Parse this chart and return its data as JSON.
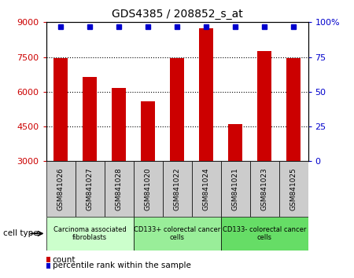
{
  "title": "GDS4385 / 208852_s_at",
  "samples": [
    "GSM841026",
    "GSM841027",
    "GSM841028",
    "GSM841020",
    "GSM841022",
    "GSM841024",
    "GSM841021",
    "GSM841023",
    "GSM841025"
  ],
  "counts": [
    7450,
    6650,
    6150,
    5600,
    7450,
    8750,
    4600,
    7750,
    7450
  ],
  "percentile_ranks": [
    97,
    97,
    97,
    97,
    97,
    97,
    97,
    97,
    97
  ],
  "cell_types": [
    {
      "label": "Carcinoma associated\nfibroblasts",
      "start": 0,
      "end": 3,
      "color": "#ccffcc"
    },
    {
      "label": "CD133+ colorectal cancer\ncells",
      "start": 3,
      "end": 6,
      "color": "#99ee99"
    },
    {
      "label": "CD133- colorectal cancer\ncells",
      "start": 6,
      "end": 9,
      "color": "#66dd66"
    }
  ],
  "ylim_left": [
    3000,
    9000
  ],
  "ylim_right": [
    0,
    100
  ],
  "yticks_left": [
    3000,
    4500,
    6000,
    7500,
    9000
  ],
  "yticks_right": [
    0,
    25,
    50,
    75,
    100
  ],
  "bar_color": "#cc0000",
  "dot_color": "#0000cc",
  "bar_width": 0.5,
  "grid_yticks": [
    4500,
    6000,
    7500
  ],
  "background_color": "#ffffff",
  "tick_label_color_left": "#cc0000",
  "tick_label_color_right": "#0000cc",
  "legend_count_label": "count",
  "legend_percentile_label": "percentile rank within the sample",
  "cell_type_label": "cell type",
  "sample_box_color": "#cccccc"
}
